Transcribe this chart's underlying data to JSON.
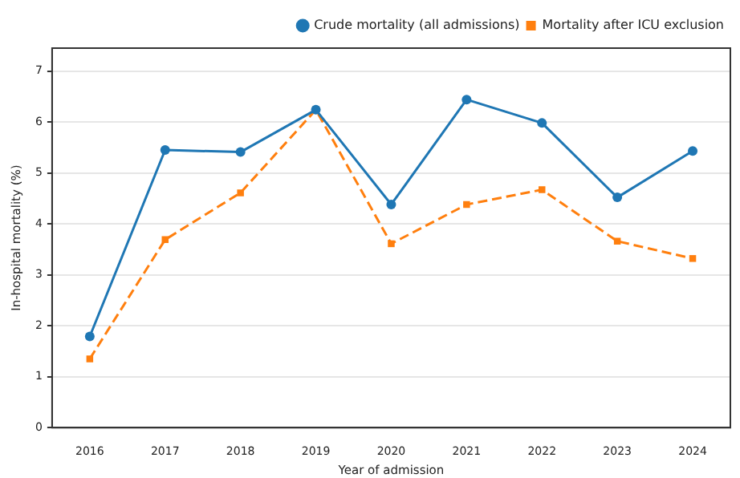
{
  "chart_data": {
    "type": "line",
    "xlabel": "Year of admission",
    "ylabel": "In-hospital mortality (%)",
    "categories": [
      "2016",
      "2017",
      "2018",
      "2019",
      "2020",
      "2021",
      "2022",
      "2023",
      "2024"
    ],
    "series": [
      {
        "name": "Crude mortality (all admissions)",
        "color": "#1f77b4",
        "marker": "circle",
        "line_style": "solid",
        "values": [
          1.79,
          5.45,
          5.41,
          6.24,
          4.38,
          6.44,
          5.98,
          4.52,
          5.43
        ]
      },
      {
        "name": "Mortality after ICU exclusion",
        "color": "#ff7f0e",
        "marker": "square",
        "line_style": "dashed",
        "values": [
          1.35,
          3.69,
          4.61,
          6.24,
          3.61,
          4.38,
          4.67,
          3.66,
          3.32
        ]
      }
    ],
    "ylim": [
      0,
      7.45
    ],
    "yticks": [
      0,
      1,
      2,
      3,
      4,
      5,
      6,
      7
    ],
    "grid": "y",
    "legend": "top right"
  }
}
